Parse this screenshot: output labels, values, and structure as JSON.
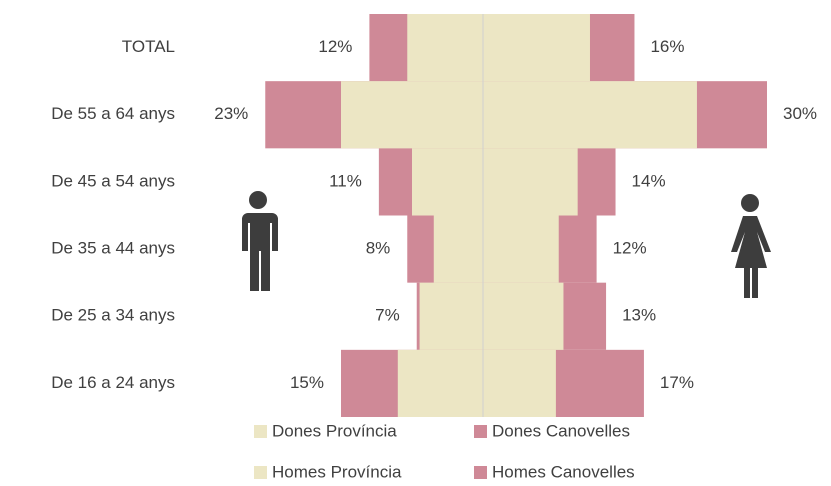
{
  "chart_data": {
    "type": "pyramid",
    "categories": [
      "TOTAL",
      "De 55 a 64 anys",
      "De 45 a 54 anys",
      "De 35 a 44 anys",
      "De 25 a 34 anys",
      "De 16 a 24 anys"
    ],
    "series": [
      {
        "name": "Dones Província",
        "color": "#ece6c4",
        "side": "right",
        "values": [
          11.3,
          22.6,
          10,
          8,
          8.5,
          7.7
        ]
      },
      {
        "name": "Dones Canovelles",
        "color": "#cf8997",
        "side": "right",
        "values": [
          16,
          30,
          14,
          12,
          13,
          17
        ],
        "value_labels": [
          "16%",
          "30%",
          "14%",
          "12%",
          "13%",
          "17%"
        ]
      },
      {
        "name": "Homes Província",
        "color": "#ece6c4",
        "side": "left",
        "values": [
          8,
          15,
          7.5,
          5.2,
          6.7,
          9
        ]
      },
      {
        "name": "Homes Canovelles",
        "color": "#cf8997",
        "side": "left",
        "values": [
          12,
          23,
          11,
          8,
          7,
          15
        ],
        "value_labels": [
          "12%",
          "23%",
          "11%",
          "8%",
          "7%",
          "15%"
        ]
      }
    ]
  }
}
